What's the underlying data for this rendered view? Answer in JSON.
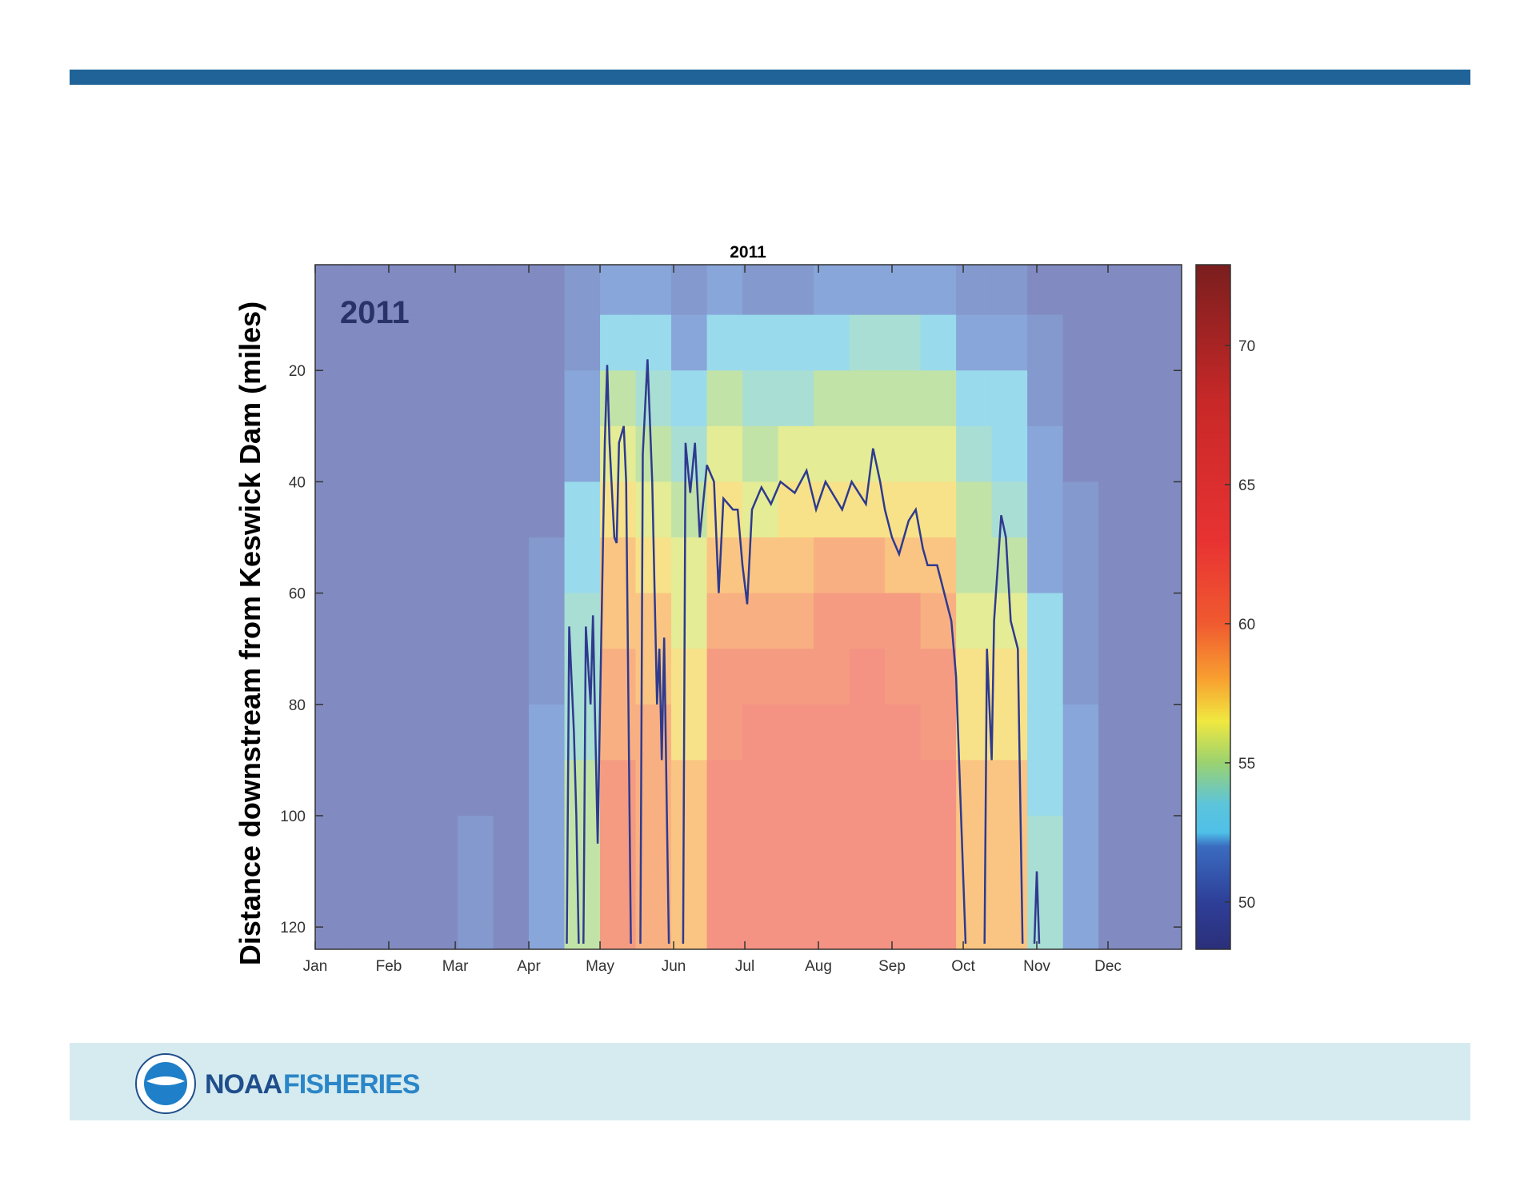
{
  "chart_data": {
    "type": "heatmap",
    "title": "2011",
    "annotation": "2011",
    "y_label": "Distance downstream from Keswick Dam (miles)",
    "xlim": [
      0,
      365
    ],
    "xticks": [
      {
        "value": 0,
        "label": "Jan"
      },
      {
        "value": 31,
        "label": "Feb"
      },
      {
        "value": 59,
        "label": "Mar"
      },
      {
        "value": 90,
        "label": "Apr"
      },
      {
        "value": 120,
        "label": "May"
      },
      {
        "value": 151,
        "label": "Jun"
      },
      {
        "value": 181,
        "label": "Jul"
      },
      {
        "value": 212,
        "label": "Aug"
      },
      {
        "value": 243,
        "label": "Sep"
      },
      {
        "value": 273,
        "label": "Oct"
      },
      {
        "value": 304,
        "label": "Nov"
      },
      {
        "value": 334,
        "label": "Dec"
      }
    ],
    "ylim": [
      1,
      124
    ],
    "y_reversed": true,
    "yticks": [
      20,
      40,
      60,
      80,
      100,
      120
    ],
    "x_edges": [
      0,
      15,
      30,
      45,
      60,
      75,
      90,
      105,
      120,
      135,
      150,
      165,
      180,
      195,
      210,
      225,
      240,
      255,
      270,
      285,
      300,
      315,
      330,
      345,
      360,
      365
    ],
    "y_edges": [
      1,
      10,
      20,
      30,
      40,
      50,
      60,
      70,
      80,
      90,
      100,
      110,
      120,
      124
    ],
    "z": [
      [
        50,
        50,
        50,
        50,
        50,
        50,
        50,
        50,
        50,
        50,
        50,
        50,
        50
      ],
      [
        50,
        50,
        50,
        50,
        50,
        50,
        50,
        50,
        50,
        50,
        50,
        50,
        50
      ],
      [
        50,
        50,
        50,
        50,
        50,
        50,
        50,
        50,
        50,
        50,
        50,
        50,
        50
      ],
      [
        50,
        50,
        50,
        50,
        50,
        50,
        50,
        50,
        50,
        50,
        50,
        50,
        50
      ],
      [
        50,
        50,
        50,
        50,
        50,
        50,
        50,
        50,
        50,
        50,
        51,
        51,
        51
      ],
      [
        50,
        50,
        50,
        50,
        50,
        50,
        50,
        50,
        50,
        50,
        50,
        50,
        50
      ],
      [
        50,
        50,
        50,
        50,
        50,
        51,
        51,
        51,
        52,
        52,
        52,
        52,
        52
      ],
      [
        51,
        51,
        52,
        52,
        53,
        53,
        54,
        54,
        54,
        55,
        55,
        55,
        55
      ],
      [
        52,
        53,
        55,
        56,
        57,
        58,
        58,
        59,
        59,
        60,
        60,
        60,
        60
      ],
      [
        52,
        53,
        54,
        55,
        56,
        57,
        58,
        58,
        59,
        59,
        59,
        59,
        59
      ],
      [
        51,
        52,
        53,
        54,
        55,
        56,
        56,
        57,
        57,
        58,
        58,
        58,
        58
      ],
      [
        52,
        53,
        55,
        56,
        57,
        58,
        59,
        60,
        60,
        61,
        61,
        61,
        61
      ],
      [
        51,
        53,
        54,
        55,
        56,
        58,
        59,
        60,
        61,
        61,
        61,
        61,
        61
      ],
      [
        51,
        53,
        54,
        56,
        57,
        58,
        59,
        60,
        61,
        61,
        61,
        61,
        61
      ],
      [
        52,
        53,
        55,
        56,
        57,
        59,
        60,
        60,
        61,
        61,
        61,
        61,
        61
      ],
      [
        52,
        54,
        55,
        56,
        57,
        59,
        60,
        61,
        61,
        61,
        61,
        61,
        61
      ],
      [
        52,
        54,
        55,
        56,
        57,
        58,
        60,
        60,
        61,
        61,
        61,
        61,
        61
      ],
      [
        52,
        53,
        55,
        56,
        57,
        58,
        59,
        60,
        60,
        61,
        61,
        61,
        61
      ],
      [
        51,
        52,
        53,
        54,
        55,
        55,
        56,
        57,
        57,
        58,
        58,
        58,
        58
      ],
      [
        51,
        52,
        53,
        53,
        54,
        55,
        56,
        57,
        57,
        58,
        58,
        58,
        58
      ],
      [
        50,
        51,
        51,
        52,
        52,
        52,
        53,
        53,
        53,
        53,
        54,
        54,
        54
      ],
      [
        50,
        50,
        50,
        50,
        51,
        51,
        51,
        51,
        52,
        52,
        52,
        52,
        52
      ],
      [
        50,
        50,
        50,
        50,
        50,
        50,
        50,
        50,
        50,
        50,
        50,
        50,
        50
      ],
      [
        50,
        50,
        50,
        50,
        50,
        50,
        50,
        50,
        50,
        50,
        50,
        50,
        50
      ],
      [
        50,
        50,
        50,
        50,
        50,
        50,
        50,
        50,
        50,
        50,
        50,
        50,
        50
      ]
    ],
    "cell_opacity": 0.6,
    "clim": [
      48.3,
      72.9
    ],
    "cticks": [
      50,
      55,
      60,
      65,
      70
    ],
    "colorscale": [
      {
        "value": 48.3,
        "color": "#2b2f7a"
      },
      {
        "value": 50,
        "color": "#2e3f98"
      },
      {
        "value": 52,
        "color": "#3a6cc0"
      },
      {
        "value": 52.5,
        "color": "#4fc0e8"
      },
      {
        "value": 53.5,
        "color": "#5cc4dc"
      },
      {
        "value": 55,
        "color": "#9ad270"
      },
      {
        "value": 56.5,
        "color": "#f0e840"
      },
      {
        "value": 58,
        "color": "#f8a030"
      },
      {
        "value": 60,
        "color": "#f05a30"
      },
      {
        "value": 63,
        "color": "#e83232"
      },
      {
        "value": 68,
        "color": "#c82828"
      },
      {
        "value": 72.9,
        "color": "#7a1e1e"
      }
    ],
    "contour": {
      "color": "#2f3a8f",
      "x": [
        106,
        107,
        109,
        110,
        111,
        null,
        113,
        114,
        116,
        117,
        119,
        120,
        122,
        123,
        124,
        126,
        127,
        128,
        130,
        131,
        133,
        null,
        137,
        138,
        140,
        142,
        144,
        145,
        146,
        147,
        149,
        null,
        155,
        156,
        158,
        160,
        162,
        165,
        168,
        170,
        172,
        176,
        178,
        180,
        182,
        184,
        188,
        192,
        196,
        202,
        207,
        211,
        215,
        222,
        226,
        232,
        235,
        238,
        240,
        243,
        246,
        250,
        253,
        256,
        258,
        262,
        265,
        268,
        270,
        274,
        null,
        282,
        283,
        285,
        286,
        289,
        291,
        293,
        296,
        298,
        null,
        303,
        304,
        305
      ],
      "y": [
        123,
        66,
        85,
        100,
        123,
        null,
        123,
        66,
        80,
        64,
        105,
        80,
        33,
        19,
        33,
        50,
        51,
        33,
        30,
        40,
        123,
        null,
        123,
        35,
        18,
        40,
        80,
        70,
        90,
        68,
        123,
        null,
        123,
        33,
        42,
        33,
        50,
        37,
        40,
        60,
        43,
        45,
        45,
        55,
        62,
        45,
        41,
        44,
        40,
        42,
        38,
        45,
        40,
        45,
        40,
        44,
        34,
        40,
        45,
        50,
        53,
        47,
        45,
        52,
        55,
        55,
        60,
        65,
        75,
        123,
        null,
        123,
        70,
        90,
        65,
        46,
        50,
        65,
        70,
        123,
        null,
        123,
        110,
        123
      ]
    }
  },
  "footer": {
    "brand": "NOAA",
    "division": "FISHERIES"
  }
}
